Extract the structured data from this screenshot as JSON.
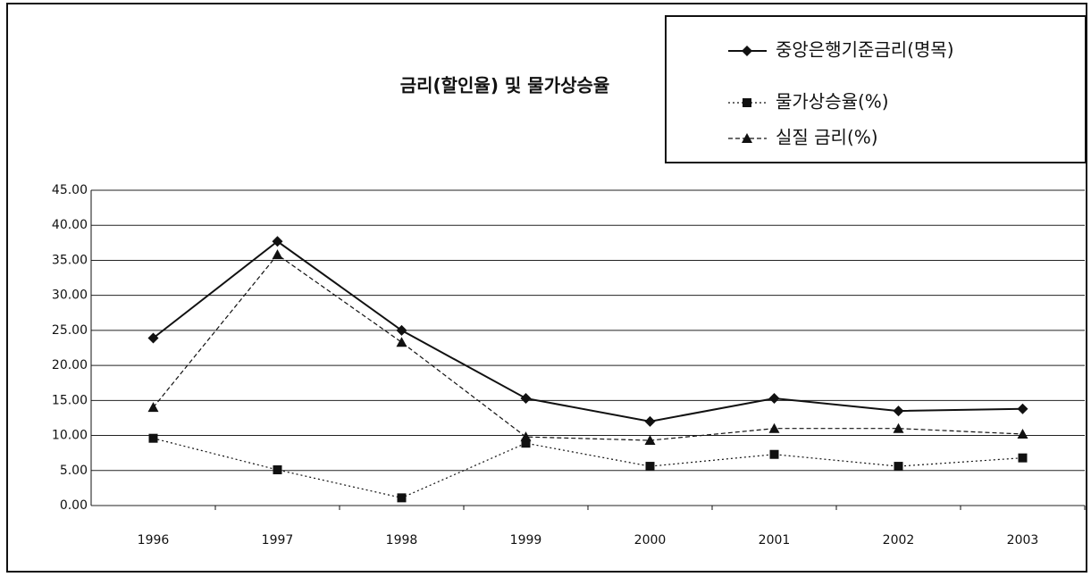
{
  "chart_data": {
    "type": "line",
    "title": "금리(할인율) 및 물가상승율",
    "categories": [
      "1996",
      "1997",
      "1998",
      "1999",
      "2000",
      "2001",
      "2002",
      "2003"
    ],
    "series": [
      {
        "name": "중앙은행기준금리(명목)",
        "color": "#111111",
        "marker": "diamond",
        "dash": "solid",
        "values": [
          23.9,
          37.7,
          25.0,
          15.3,
          12.0,
          15.3,
          13.5,
          13.8
        ]
      },
      {
        "name": "물가상승율(%)",
        "color": "#111111",
        "marker": "square",
        "dash": "dotted",
        "values": [
          9.6,
          5.1,
          1.1,
          8.9,
          5.6,
          7.3,
          5.6,
          6.8
        ]
      },
      {
        "name": "실질 금리(%)",
        "color": "#111111",
        "marker": "triangle",
        "dash": "dashed",
        "values": [
          14.0,
          35.8,
          23.3,
          9.8,
          9.3,
          11.0,
          11.0,
          10.2
        ]
      }
    ],
    "ylim": [
      0,
      45
    ],
    "yticks": [
      {
        "value": 0,
        "label": "0.00"
      },
      {
        "value": 5,
        "label": "5.00"
      },
      {
        "value": 10,
        "label": "10.00"
      },
      {
        "value": 15,
        "label": "15.00"
      },
      {
        "value": 20,
        "label": "20.00"
      },
      {
        "value": 25,
        "label": "25.00"
      },
      {
        "value": 30,
        "label": "30.00"
      },
      {
        "value": 35,
        "label": "35.00"
      },
      {
        "value": 40,
        "label": "40.00"
      },
      {
        "value": 45,
        "label": "45.00"
      }
    ],
    "grid": true,
    "legend": "top-right"
  }
}
